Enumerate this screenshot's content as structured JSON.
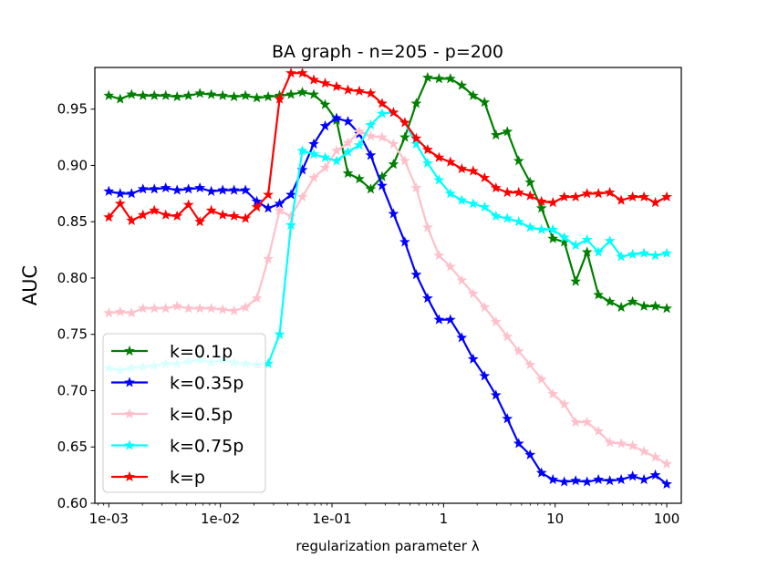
{
  "chart_data": {
    "type": "line",
    "title": "BA graph - n=205 - p=200",
    "xlabel": "regularization parameter λ",
    "ylabel": "AUC",
    "xscale": "log",
    "xlim": [
      0.00075,
      135
    ],
    "ylim": [
      0.6,
      0.987
    ],
    "grid": false,
    "legend_position": "lower-left",
    "xticks": [
      {
        "value": 0.001,
        "label": "1e-03"
      },
      {
        "value": 0.01,
        "label": "1e-02"
      },
      {
        "value": 0.1,
        "label": "1e-01"
      },
      {
        "value": 1,
        "label": "1"
      },
      {
        "value": 10,
        "label": "10"
      },
      {
        "value": 100,
        "label": "100"
      }
    ],
    "yticks": [
      {
        "value": 0.6,
        "label": "0.60"
      },
      {
        "value": 0.65,
        "label": "0.65"
      },
      {
        "value": 0.7,
        "label": "0.70"
      },
      {
        "value": 0.75,
        "label": "0.75"
      },
      {
        "value": 0.8,
        "label": "0.80"
      },
      {
        "value": 0.85,
        "label": "0.85"
      },
      {
        "value": 0.9,
        "label": "0.90"
      },
      {
        "value": 0.95,
        "label": "0.95"
      }
    ],
    "log10_x_start": -3,
    "log10_x_end": 2,
    "n_points": 50,
    "series": [
      {
        "name": "k=0.1p",
        "color": "#008000",
        "values": [
          0.962,
          0.959,
          0.963,
          0.962,
          0.962,
          0.962,
          0.961,
          0.962,
          0.964,
          0.963,
          0.962,
          0.961,
          0.962,
          0.96,
          0.961,
          0.962,
          0.963,
          0.965,
          0.963,
          0.954,
          0.94,
          0.893,
          0.888,
          0.879,
          0.89,
          0.901,
          0.925,
          0.955,
          0.978,
          0.977,
          0.977,
          0.971,
          0.962,
          0.956,
          0.927,
          0.93,
          0.904,
          0.885,
          0.862,
          0.835,
          0.832,
          0.797,
          0.823,
          0.785,
          0.779,
          0.774,
          0.779,
          0.775,
          0.775,
          0.773
        ]
      },
      {
        "name": "k=0.35p",
        "color": "#0000ff",
        "values": [
          0.877,
          0.875,
          0.875,
          0.879,
          0.879,
          0.88,
          0.878,
          0.879,
          0.88,
          0.877,
          0.878,
          0.878,
          0.878,
          0.868,
          0.862,
          0.866,
          0.874,
          0.896,
          0.919,
          0.935,
          0.942,
          0.939,
          0.928,
          0.909,
          0.882,
          0.857,
          0.832,
          0.803,
          0.782,
          0.763,
          0.763,
          0.747,
          0.728,
          0.713,
          0.696,
          0.675,
          0.653,
          0.643,
          0.627,
          0.621,
          0.619,
          0.62,
          0.619,
          0.621,
          0.62,
          0.621,
          0.624,
          0.621,
          0.625,
          0.617
        ]
      },
      {
        "name": "k=0.5p",
        "color": "#ffc0cb",
        "values": [
          0.769,
          0.77,
          0.769,
          0.773,
          0.773,
          0.773,
          0.775,
          0.773,
          0.773,
          0.773,
          0.772,
          0.771,
          0.774,
          0.782,
          0.817,
          0.86,
          0.855,
          0.872,
          0.889,
          0.898,
          0.913,
          0.92,
          0.93,
          0.926,
          0.925,
          0.919,
          0.904,
          0.88,
          0.845,
          0.82,
          0.81,
          0.798,
          0.786,
          0.774,
          0.761,
          0.748,
          0.735,
          0.723,
          0.71,
          0.697,
          0.688,
          0.672,
          0.672,
          0.664,
          0.654,
          0.653,
          0.651,
          0.646,
          0.641,
          0.635
        ]
      },
      {
        "name": "k=0.75p",
        "color": "#00ffff",
        "values": [
          0.72,
          0.718,
          0.72,
          0.721,
          0.722,
          0.724,
          0.724,
          0.726,
          0.727,
          0.725,
          0.727,
          0.725,
          0.724,
          0.723,
          0.724,
          0.75,
          0.847,
          0.913,
          0.91,
          0.907,
          0.904,
          0.912,
          0.918,
          0.936,
          0.946,
          0.947,
          0.938,
          0.919,
          0.902,
          0.887,
          0.875,
          0.869,
          0.866,
          0.863,
          0.855,
          0.853,
          0.85,
          0.845,
          0.843,
          0.843,
          0.836,
          0.829,
          0.834,
          0.823,
          0.833,
          0.819,
          0.821,
          0.822,
          0.82,
          0.822
        ]
      },
      {
        "name": "k=p",
        "color": "#ff0000",
        "values": [
          0.854,
          0.866,
          0.851,
          0.856,
          0.86,
          0.856,
          0.855,
          0.865,
          0.85,
          0.86,
          0.856,
          0.855,
          0.853,
          0.863,
          0.874,
          0.959,
          0.982,
          0.982,
          0.976,
          0.973,
          0.97,
          0.967,
          0.966,
          0.964,
          0.955,
          0.947,
          0.938,
          0.924,
          0.914,
          0.907,
          0.903,
          0.897,
          0.895,
          0.889,
          0.88,
          0.876,
          0.876,
          0.873,
          0.868,
          0.867,
          0.872,
          0.872,
          0.875,
          0.875,
          0.876,
          0.869,
          0.872,
          0.872,
          0.867,
          0.872
        ]
      }
    ]
  }
}
